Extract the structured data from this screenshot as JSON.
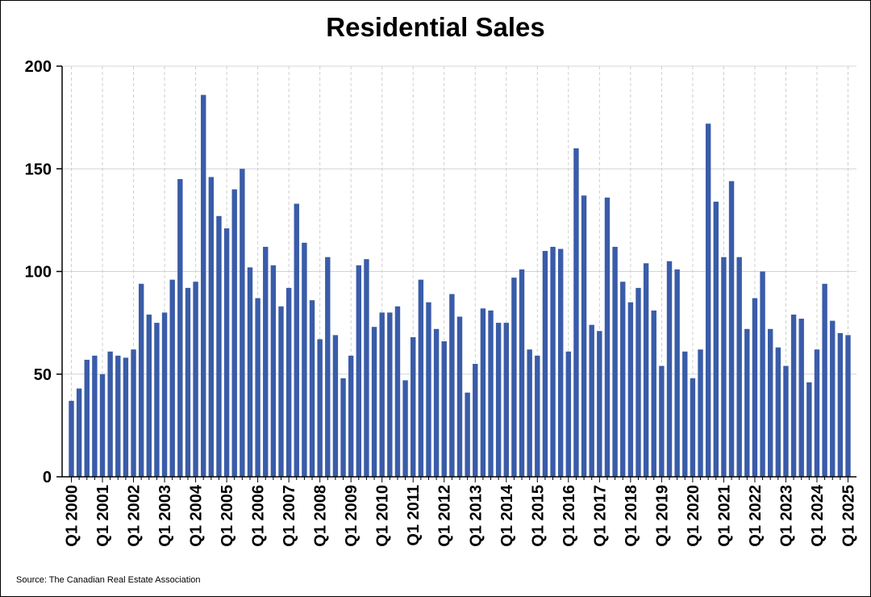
{
  "chart_data": {
    "type": "bar",
    "title": "Residential Sales",
    "xlabel": "",
    "ylabel": "",
    "ylim": [
      0,
      200
    ],
    "yticks": [
      0,
      50,
      100,
      150,
      200
    ],
    "grid": {
      "horizontal": "solid",
      "vertical": "dashed"
    },
    "bar_color": "#3a5ca8",
    "categories": [
      "Q1 2000",
      "Q2 2000",
      "Q3 2000",
      "Q4 2000",
      "Q1 2001",
      "Q2 2001",
      "Q3 2001",
      "Q4 2001",
      "Q1 2002",
      "Q2 2002",
      "Q3 2002",
      "Q4 2002",
      "Q1 2003",
      "Q2 2003",
      "Q3 2003",
      "Q4 2003",
      "Q1 2004",
      "Q2 2004",
      "Q3 2004",
      "Q4 2004",
      "Q1 2005",
      "Q2 2005",
      "Q3 2005",
      "Q4 2005",
      "Q1 2006",
      "Q2 2006",
      "Q3 2006",
      "Q4 2006",
      "Q1 2007",
      "Q2 2007",
      "Q3 2007",
      "Q4 2007",
      "Q1 2008",
      "Q2 2008",
      "Q3 2008",
      "Q4 2008",
      "Q1 2009",
      "Q2 2009",
      "Q3 2009",
      "Q4 2009",
      "Q1 2010",
      "Q2 2010",
      "Q3 2010",
      "Q4 2010",
      "Q1 2011",
      "Q2 2011",
      "Q3 2011",
      "Q4 2011",
      "Q1 2012",
      "Q2 2012",
      "Q3 2012",
      "Q4 2012",
      "Q1 2013",
      "Q2 2013",
      "Q3 2013",
      "Q4 2013",
      "Q1 2014",
      "Q2 2014",
      "Q3 2014",
      "Q4 2014",
      "Q1 2015",
      "Q2 2015",
      "Q3 2015",
      "Q4 2015",
      "Q1 2016",
      "Q2 2016",
      "Q3 2016",
      "Q4 2016",
      "Q1 2017",
      "Q2 2017",
      "Q3 2017",
      "Q4 2017",
      "Q1 2018",
      "Q2 2018",
      "Q3 2018",
      "Q4 2018",
      "Q1 2019",
      "Q2 2019",
      "Q3 2019",
      "Q4 2019",
      "Q1 2020",
      "Q2 2020",
      "Q3 2020",
      "Q4 2020",
      "Q1 2021",
      "Q2 2021",
      "Q3 2021",
      "Q4 2021",
      "Q1 2022",
      "Q2 2022",
      "Q3 2022",
      "Q4 2022",
      "Q1 2023",
      "Q2 2023",
      "Q3 2023",
      "Q4 2023",
      "Q1 2024",
      "Q2 2024",
      "Q3 2024",
      "Q4 2024",
      "Q1 2025"
    ],
    "values": [
      37,
      43,
      57,
      59,
      50,
      61,
      59,
      58,
      62,
      94,
      79,
      75,
      80,
      96,
      145,
      92,
      95,
      186,
      146,
      127,
      121,
      140,
      150,
      102,
      87,
      112,
      103,
      83,
      92,
      133,
      114,
      86,
      67,
      107,
      69,
      48,
      59,
      103,
      106,
      73,
      80,
      80,
      83,
      47,
      68,
      96,
      85,
      72,
      66,
      89,
      78,
      41,
      55,
      82,
      81,
      75,
      75,
      97,
      101,
      62,
      59,
      110,
      112,
      111,
      61,
      160,
      137,
      74,
      71,
      136,
      112,
      95,
      85,
      92,
      104,
      81,
      54,
      105,
      101,
      61,
      48,
      62,
      172,
      134,
      107,
      144,
      107,
      72,
      87,
      100,
      72,
      63,
      54,
      79,
      77,
      46,
      62,
      94,
      76,
      70,
      69
    ],
    "xtick_labels": [
      "Q1 2000",
      "Q1 2001",
      "Q1 2002",
      "Q1 2003",
      "Q1 2004",
      "Q1 2005",
      "Q1 2006",
      "Q1 2007",
      "Q1 2008",
      "Q1 2009",
      "Q1 2010",
      "Q1 2011",
      "Q1 2012",
      "Q1 2013",
      "Q1 2014",
      "Q1 2015",
      "Q1 2016",
      "Q1 2017",
      "Q1 2018",
      "Q1 2019",
      "Q1 2020",
      "Q1 2021",
      "Q1 2022",
      "Q1 2023",
      "Q1 2024",
      "Q1 2025"
    ],
    "source": "Source: The Canadian Real Estate Association"
  }
}
